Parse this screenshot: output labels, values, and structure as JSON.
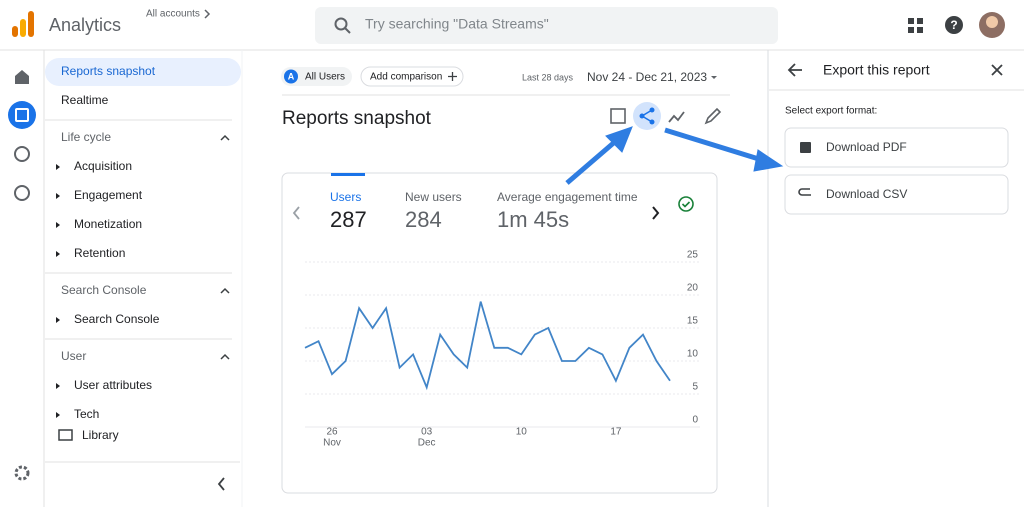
{
  "header": {
    "app_name": "Analytics",
    "account_label": "All accounts",
    "search_placeholder": "Try searching \"Data Streams\""
  },
  "nav": {
    "top": [
      "Reports snapshot",
      "Realtime"
    ],
    "sections": [
      {
        "title": "Life cycle",
        "items": [
          "Acquisition",
          "Engagement",
          "Monetization",
          "Retention"
        ]
      },
      {
        "title": "Search Console",
        "items": [
          "Search Console"
        ]
      },
      {
        "title": "User",
        "items": [
          "User attributes",
          "Tech"
        ]
      }
    ],
    "library": "Library"
  },
  "toolbar": {
    "segment_badge": "A",
    "segment": "All Users",
    "add_comparison": "Add comparison",
    "range_label": "Last 28 days",
    "date_range": "Nov 24 - Dec 21, 2023"
  },
  "report": {
    "title": "Reports snapshot",
    "metrics": [
      {
        "label": "Users",
        "value": 287
      },
      {
        "label": "New users",
        "value": 284
      },
      {
        "label": "Average engagement time",
        "value": "1m 45s"
      }
    ]
  },
  "chart_data": {
    "type": "line",
    "categories": [
      null,
      null,
      "26",
      null,
      null,
      null,
      null,
      null,
      null,
      "03",
      null,
      null,
      null,
      null,
      null,
      null,
      "10",
      null,
      null,
      null,
      null,
      null,
      null,
      "17",
      null,
      null,
      null,
      null
    ],
    "category_months": [
      null,
      null,
      "Nov",
      null,
      null,
      null,
      null,
      null,
      null,
      "Dec",
      null,
      null,
      null,
      null,
      null,
      null,
      null,
      null,
      null,
      null,
      null,
      null,
      null,
      null,
      null,
      null,
      null,
      null
    ],
    "series": [
      {
        "name": "Users",
        "color": "#4285c8",
        "values": [
          12,
          13,
          8,
          10,
          18,
          15,
          18,
          9,
          11,
          6,
          14,
          11,
          9,
          19,
          12,
          12,
          11,
          14,
          15,
          10,
          10,
          12,
          11,
          7,
          12,
          14,
          10,
          7
        ]
      }
    ],
    "ylim": [
      0,
      25
    ],
    "yticks": [
      0,
      5,
      10,
      15,
      20,
      25
    ],
    "grid": true
  },
  "export_panel": {
    "title": "Export this report",
    "prompt": "Select export format:",
    "options": [
      "Download PDF",
      "Download CSV"
    ]
  }
}
